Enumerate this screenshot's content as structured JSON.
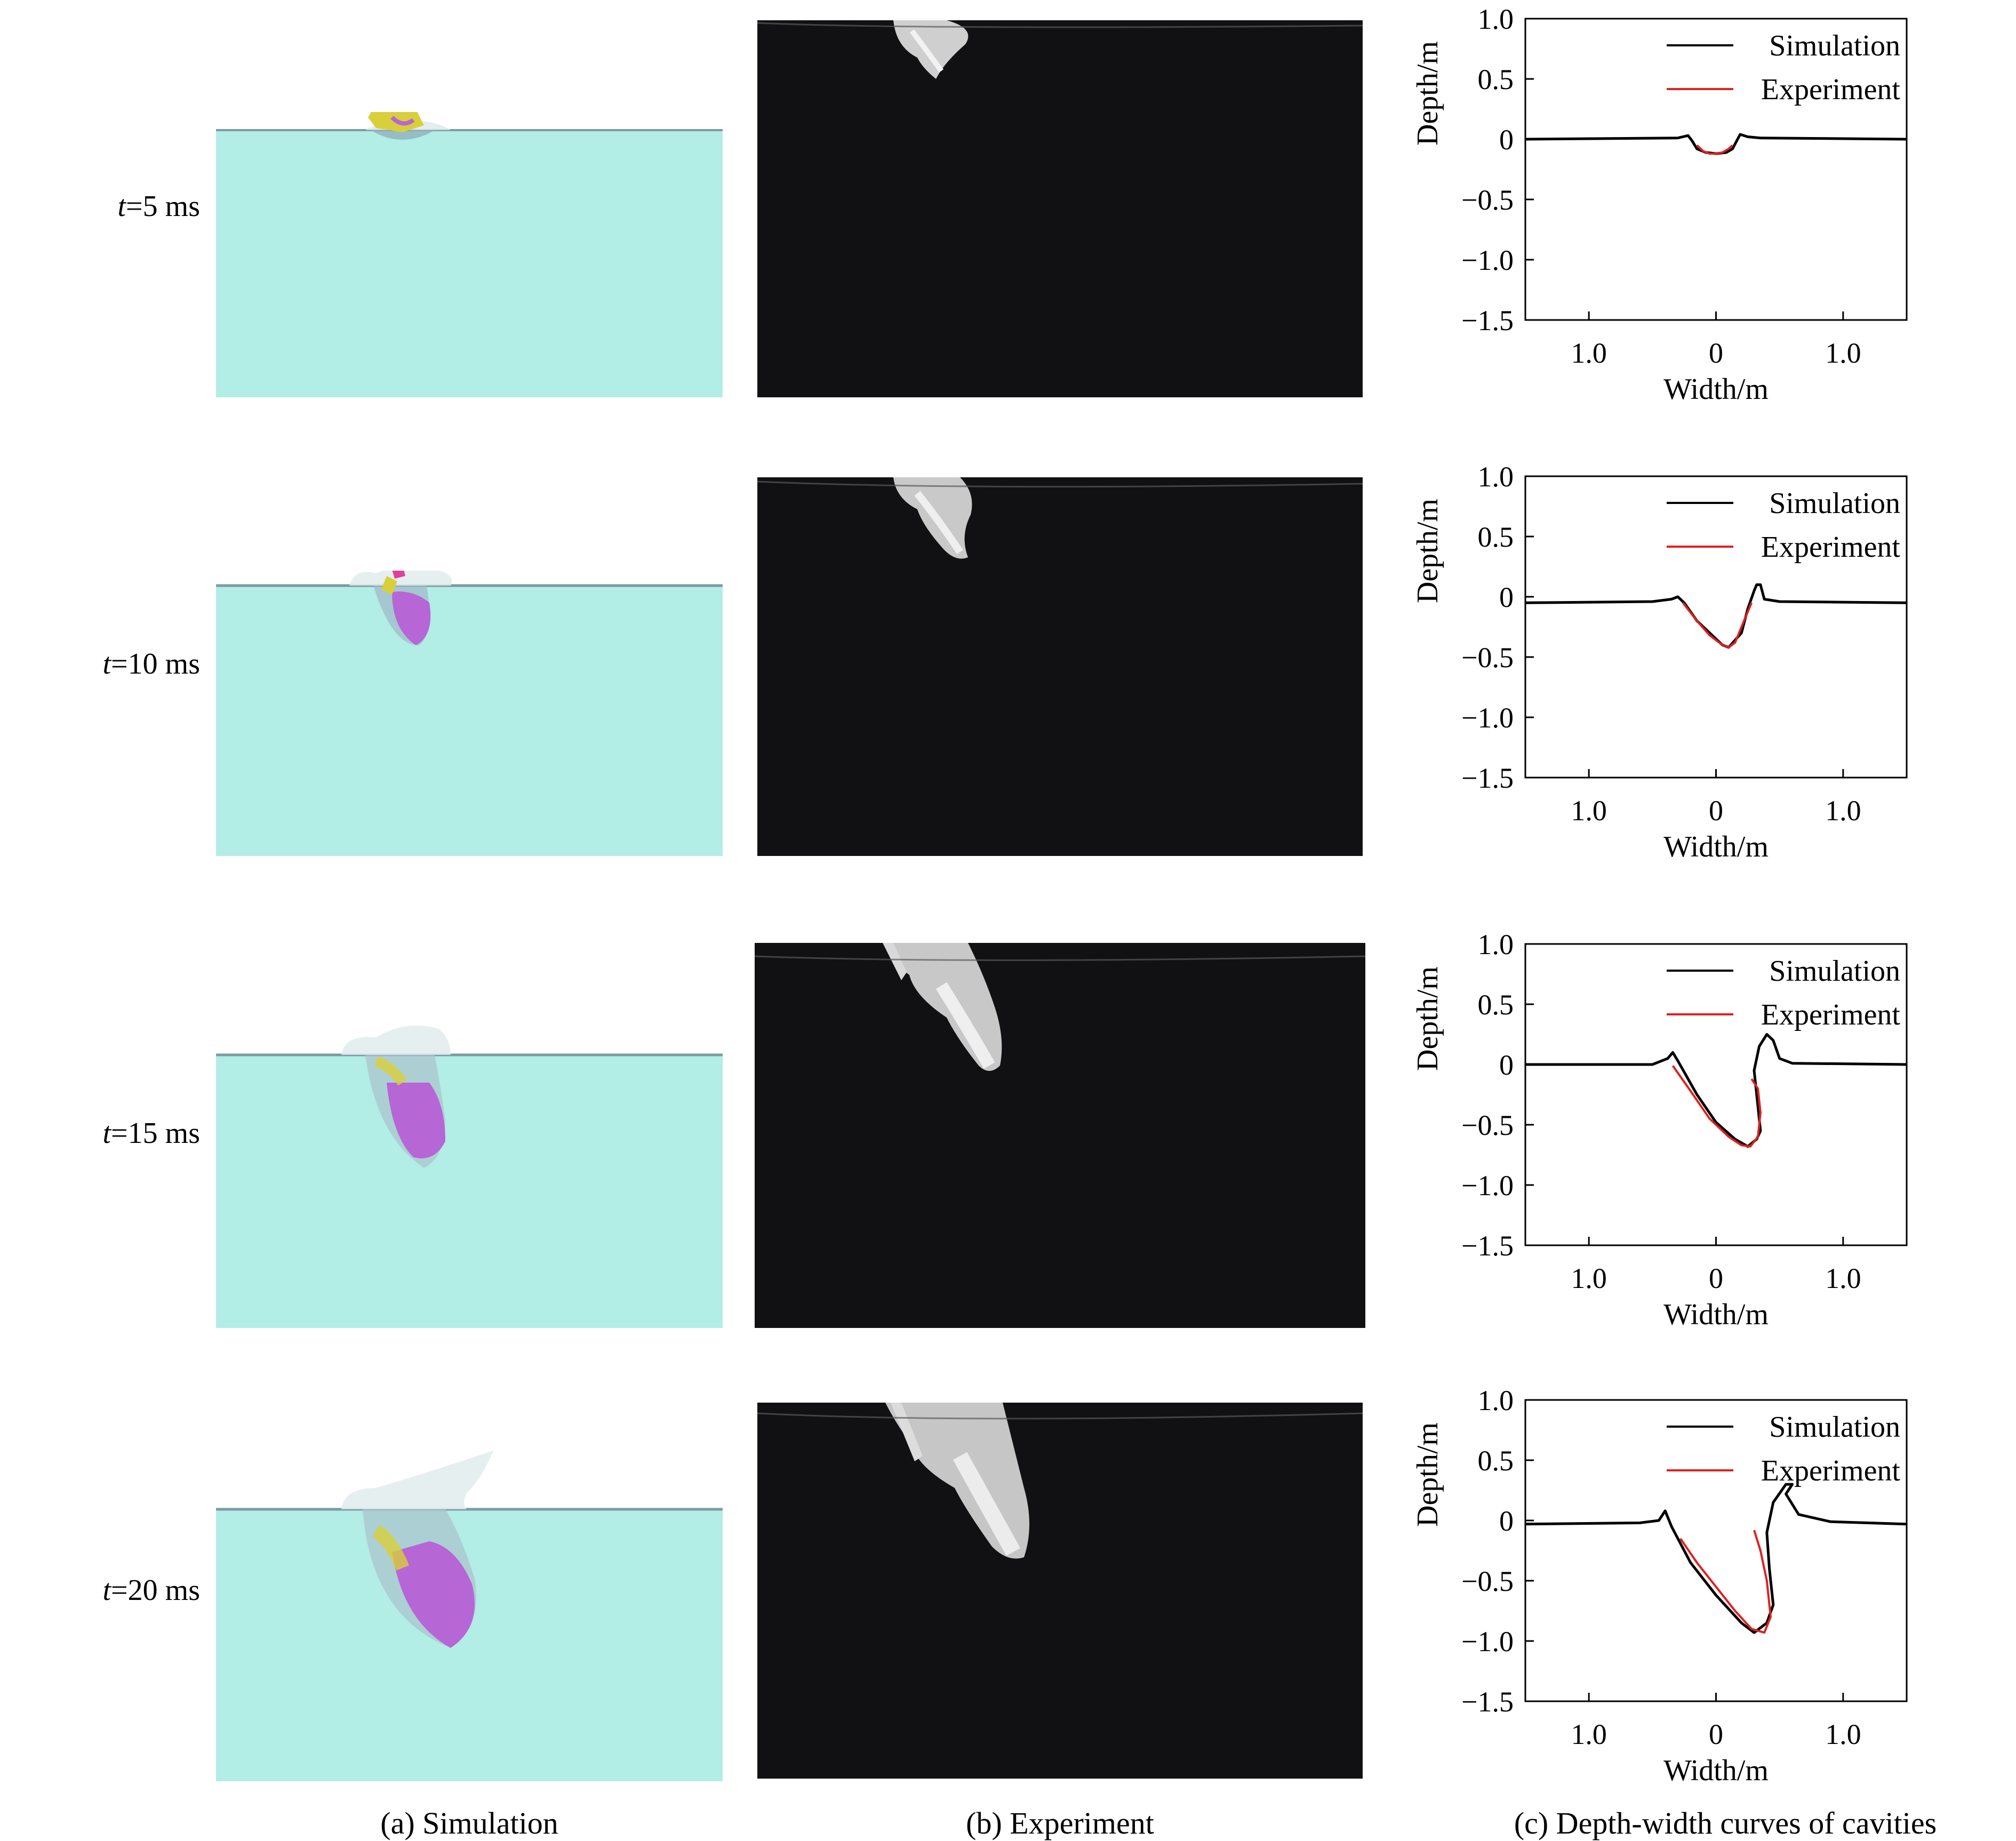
{
  "rows": [
    {
      "time_label": "5 ms"
    },
    {
      "time_label": "10 ms"
    },
    {
      "time_label": "15 ms"
    },
    {
      "time_label": "20 ms"
    }
  ],
  "captions": {
    "sim": "(a) Simulation",
    "exp": "(b) Experiment",
    "curves": "(c) Depth-width curves of cavities"
  },
  "colors": {
    "water": "#b2ede6",
    "shell_magenta": "#e0409a",
    "shell_yellow": "#d9cf3a",
    "shell_purple": "#b766d6",
    "experiment_bg": "#111012",
    "simulation_line": "#000000",
    "experiment_line": "#e02020"
  },
  "chart_data": [
    {
      "type": "line",
      "time": "t=5 ms",
      "xlabel": "Width/m",
      "ylabel": "Depth/m",
      "xlim": [
        -1.5,
        1.5
      ],
      "ylim": [
        -1.5,
        1.0
      ],
      "xtick_values": [
        -1.0,
        0,
        1.0
      ],
      "xtick_labels": [
        "1.0",
        "0",
        "1.0"
      ],
      "ytick_values": [
        1.0,
        0.5,
        0,
        -0.5,
        -1.0,
        -1.5
      ],
      "ytick_labels": [
        "1.0",
        "0.5",
        "0",
        "−0.5",
        "−1.0",
        "−1.5"
      ],
      "legend_position": "top-right",
      "series": [
        {
          "name": "Simulation",
          "color": "#000000",
          "x": [
            -1.5,
            -0.3,
            -0.22,
            -0.19,
            -0.15,
            -0.08,
            0,
            0.08,
            0.13,
            0.16,
            0.19,
            0.25,
            0.35,
            1.5
          ],
          "y": [
            0,
            0.01,
            0.03,
            -0.01,
            -0.08,
            -0.11,
            -0.12,
            -0.11,
            -0.08,
            -0.02,
            0.04,
            0.02,
            0.01,
            0
          ]
        },
        {
          "name": "Experiment",
          "color": "#e02020",
          "x": [
            -0.15,
            -0.1,
            -0.05,
            0,
            0.05,
            0.1,
            0.13
          ],
          "y": [
            -0.05,
            -0.1,
            -0.12,
            -0.12,
            -0.11,
            -0.08,
            -0.05
          ]
        }
      ]
    },
    {
      "type": "line",
      "time": "t=10 ms",
      "xlabel": "Width/m",
      "ylabel": "Depth/m",
      "xlim": [
        -1.5,
        1.5
      ],
      "ylim": [
        -1.5,
        1.0
      ],
      "xtick_values": [
        -1.0,
        0,
        1.0
      ],
      "xtick_labels": [
        "1.0",
        "0",
        "1.0"
      ],
      "ytick_values": [
        1.0,
        0.5,
        0,
        -0.5,
        -1.0,
        -1.5
      ],
      "ytick_labels": [
        "1.0",
        "0.5",
        "0",
        "−0.5",
        "−1.0",
        "−1.5"
      ],
      "legend_position": "top-right",
      "series": [
        {
          "name": "Simulation",
          "color": "#000000",
          "x": [
            -1.5,
            -0.5,
            -0.35,
            -0.3,
            -0.25,
            -0.15,
            0,
            0.05,
            0.1,
            0.2,
            0.25,
            0.3,
            0.32,
            0.35,
            0.38,
            0.5,
            1.5
          ],
          "y": [
            -0.05,
            -0.04,
            -0.02,
            0.0,
            -0.05,
            -0.2,
            -0.35,
            -0.4,
            -0.42,
            -0.3,
            -0.1,
            0.05,
            0.1,
            0.1,
            -0.02,
            -0.04,
            -0.05
          ]
        },
        {
          "name": "Experiment",
          "color": "#e02020",
          "x": [
            -0.26,
            -0.15,
            -0.05,
            0.05,
            0.1,
            0.15,
            0.22,
            0.28
          ],
          "y": [
            -0.05,
            -0.2,
            -0.32,
            -0.4,
            -0.42,
            -0.38,
            -0.2,
            -0.05
          ]
        }
      ]
    },
    {
      "type": "line",
      "time": "t=15 ms",
      "xlabel": "Width/m",
      "ylabel": "Depth/m",
      "xlim": [
        -1.5,
        1.5
      ],
      "ylim": [
        -1.5,
        1.0
      ],
      "xtick_values": [
        -1.0,
        0,
        1.0
      ],
      "xtick_labels": [
        "1.0",
        "0",
        "1.0"
      ],
      "ytick_values": [
        1.0,
        0.5,
        0,
        -0.5,
        -1.0,
        -1.5
      ],
      "ytick_labels": [
        "1.0",
        "0.5",
        "0",
        "−0.5",
        "−1.0",
        "−1.5"
      ],
      "legend_position": "top-right",
      "series": [
        {
          "name": "Simulation",
          "color": "#000000",
          "x": [
            -1.5,
            -0.5,
            -0.38,
            -0.34,
            -0.3,
            -0.15,
            0,
            0.15,
            0.25,
            0.32,
            0.35,
            0.3,
            0.34,
            0.4,
            0.45,
            0.5,
            0.6,
            1.5
          ],
          "y": [
            0,
            0.0,
            0.05,
            0.1,
            0.03,
            -0.25,
            -0.48,
            -0.62,
            -0.68,
            -0.62,
            -0.55,
            -0.05,
            0.15,
            0.25,
            0.2,
            0.05,
            0.01,
            0
          ]
        },
        {
          "name": "Experiment",
          "color": "#e02020",
          "x": [
            -0.34,
            -0.2,
            -0.05,
            0.1,
            0.2,
            0.27,
            0.33,
            0.35,
            0.33,
            0.28
          ],
          "y": [
            -0.01,
            -0.22,
            -0.45,
            -0.6,
            -0.67,
            -0.68,
            -0.6,
            -0.4,
            -0.2,
            -0.12
          ]
        }
      ]
    },
    {
      "type": "line",
      "time": "t=20 ms",
      "xlabel": "Width/m",
      "ylabel": "Depth/m",
      "xlim": [
        -1.5,
        1.5
      ],
      "ylim": [
        -1.5,
        1.0
      ],
      "xtick_values": [
        -1.0,
        0,
        1.0
      ],
      "xtick_labels": [
        "1.0",
        "0",
        "1.0"
      ],
      "ytick_values": [
        1.0,
        0.5,
        0,
        -0.5,
        -1.0,
        -1.5
      ],
      "ytick_labels": [
        "1.0",
        "0.5",
        "0",
        "−0.5",
        "−1.0",
        "−1.5"
      ],
      "legend_position": "top-right",
      "series": [
        {
          "name": "Simulation",
          "color": "#000000",
          "x": [
            -1.5,
            -0.6,
            -0.45,
            -0.4,
            -0.35,
            -0.2,
            0,
            0.2,
            0.3,
            0.4,
            0.45,
            0.42,
            0.4,
            0.45,
            0.55,
            0.6,
            0.55,
            0.65,
            0.9,
            1.5
          ],
          "y": [
            -0.03,
            -0.02,
            0.0,
            0.08,
            -0.05,
            -0.35,
            -0.62,
            -0.85,
            -0.93,
            -0.85,
            -0.7,
            -0.4,
            -0.1,
            0.15,
            0.3,
            0.3,
            0.22,
            0.05,
            -0.01,
            -0.03
          ]
        },
        {
          "name": "Experiment",
          "color": "#e02020",
          "x": [
            -0.28,
            -0.15,
            0,
            0.15,
            0.28,
            0.38,
            0.43,
            0.4,
            0.35,
            0.3
          ],
          "y": [
            -0.15,
            -0.35,
            -0.55,
            -0.75,
            -0.9,
            -0.93,
            -0.8,
            -0.5,
            -0.25,
            -0.08
          ]
        }
      ]
    }
  ]
}
